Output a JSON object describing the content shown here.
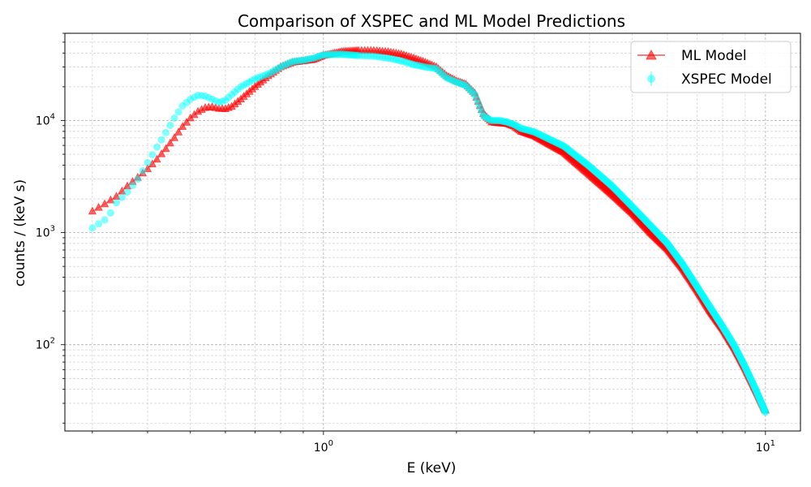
{
  "chart_data": {
    "type": "scatter",
    "title": "Comparison of XSPEC and ML Model Predictions",
    "xlabel": "E (keV)",
    "ylabel": "counts / (keV s)",
    "xscale": "log",
    "yscale": "log",
    "xlim": [
      0.26,
      12
    ],
    "ylim": [
      17,
      60000
    ],
    "grid": true,
    "legend_position": "top-right",
    "x_ticks": [
      {
        "value": 1,
        "base": "10",
        "exp": "0"
      },
      {
        "value": 10,
        "base": "10",
        "exp": "1"
      }
    ],
    "y_ticks": [
      {
        "value": 100,
        "base": "10",
        "exp": "2"
      },
      {
        "value": 1000,
        "base": "10",
        "exp": "3"
      },
      {
        "value": 10000,
        "base": "10",
        "exp": "4"
      }
    ],
    "series": [
      {
        "name": "ML Model",
        "marker": "triangle",
        "color": "#ff0000",
        "line_color": "#f08080",
        "opacity": 0.6,
        "points": [
          [
            0.3,
            1550
          ],
          [
            0.32,
            1800
          ],
          [
            0.34,
            2100
          ],
          [
            0.36,
            2600
          ],
          [
            0.38,
            3100
          ],
          [
            0.4,
            3700
          ],
          [
            0.42,
            4500
          ],
          [
            0.44,
            5600
          ],
          [
            0.46,
            7000
          ],
          [
            0.48,
            8800
          ],
          [
            0.5,
            10500
          ],
          [
            0.52,
            12000
          ],
          [
            0.54,
            13000
          ],
          [
            0.56,
            13200
          ],
          [
            0.58,
            12800
          ],
          [
            0.6,
            12700
          ],
          [
            0.62,
            13300
          ],
          [
            0.65,
            15500
          ],
          [
            0.7,
            20000
          ],
          [
            0.75,
            25000
          ],
          [
            0.8,
            30000
          ],
          [
            0.85,
            33000
          ],
          [
            0.9,
            34000
          ],
          [
            0.95,
            35000
          ],
          [
            1.0,
            38000
          ],
          [
            1.1,
            41000
          ],
          [
            1.2,
            42000
          ],
          [
            1.3,
            42000
          ],
          [
            1.4,
            41000
          ],
          [
            1.5,
            39000
          ],
          [
            1.6,
            36000
          ],
          [
            1.7,
            33000
          ],
          [
            1.8,
            30000
          ],
          [
            1.9,
            25000
          ],
          [
            2.0,
            22500
          ],
          [
            2.1,
            21000
          ],
          [
            2.2,
            17500
          ],
          [
            2.3,
            11500
          ],
          [
            2.4,
            9700
          ],
          [
            2.5,
            9500
          ],
          [
            2.6,
            9400
          ],
          [
            2.7,
            8900
          ],
          [
            2.8,
            8000
          ],
          [
            3.0,
            7300
          ],
          [
            3.5,
            5200
          ],
          [
            4.0,
            3300
          ],
          [
            4.5,
            2200
          ],
          [
            5.0,
            1500
          ],
          [
            5.5,
            1000
          ],
          [
            6.0,
            720
          ],
          [
            6.5,
            480
          ],
          [
            7.0,
            310
          ],
          [
            7.5,
            200
          ],
          [
            8.0,
            140
          ],
          [
            8.5,
            95
          ],
          [
            9.0,
            62
          ],
          [
            9.5,
            40
          ],
          [
            10.0,
            26
          ]
        ]
      },
      {
        "name": "XSPEC Model",
        "marker": "circle",
        "color": "#00ffff",
        "opacity": 0.5,
        "points": [
          [
            0.3,
            1100
          ],
          [
            0.32,
            1300
          ],
          [
            0.33,
            1500
          ],
          [
            0.34,
            1850
          ],
          [
            0.36,
            2300
          ],
          [
            0.38,
            3000
          ],
          [
            0.4,
            4200
          ],
          [
            0.42,
            5800
          ],
          [
            0.44,
            7800
          ],
          [
            0.46,
            10500
          ],
          [
            0.48,
            13500
          ],
          [
            0.5,
            15500
          ],
          [
            0.52,
            16800
          ],
          [
            0.54,
            16500
          ],
          [
            0.56,
            15500
          ],
          [
            0.58,
            14500
          ],
          [
            0.6,
            15200
          ],
          [
            0.62,
            17000
          ],
          [
            0.65,
            20000
          ],
          [
            0.7,
            23500
          ],
          [
            0.75,
            26000
          ],
          [
            0.8,
            30000
          ],
          [
            0.85,
            33500
          ],
          [
            0.9,
            34500
          ],
          [
            0.95,
            36000
          ],
          [
            1.0,
            38500
          ],
          [
            1.1,
            39000
          ],
          [
            1.2,
            38000
          ],
          [
            1.3,
            37500
          ],
          [
            1.4,
            36000
          ],
          [
            1.5,
            34000
          ],
          [
            1.6,
            31500
          ],
          [
            1.7,
            30000
          ],
          [
            1.8,
            29000
          ],
          [
            1.9,
            24000
          ],
          [
            2.0,
            22000
          ],
          [
            2.1,
            20500
          ],
          [
            2.2,
            17000
          ],
          [
            2.3,
            11000
          ],
          [
            2.4,
            10000
          ],
          [
            2.5,
            10000
          ],
          [
            2.6,
            9700
          ],
          [
            2.7,
            9200
          ],
          [
            2.8,
            8500
          ],
          [
            3.0,
            7900
          ],
          [
            3.5,
            5900
          ],
          [
            4.0,
            3900
          ],
          [
            4.5,
            2600
          ],
          [
            5.0,
            1700
          ],
          [
            5.5,
            1150
          ],
          [
            6.0,
            800
          ],
          [
            6.5,
            520
          ],
          [
            7.0,
            330
          ],
          [
            7.5,
            215
          ],
          [
            8.0,
            145
          ],
          [
            8.5,
            98
          ],
          [
            9.0,
            63
          ],
          [
            9.5,
            40
          ],
          [
            10.0,
            25
          ]
        ]
      }
    ]
  }
}
